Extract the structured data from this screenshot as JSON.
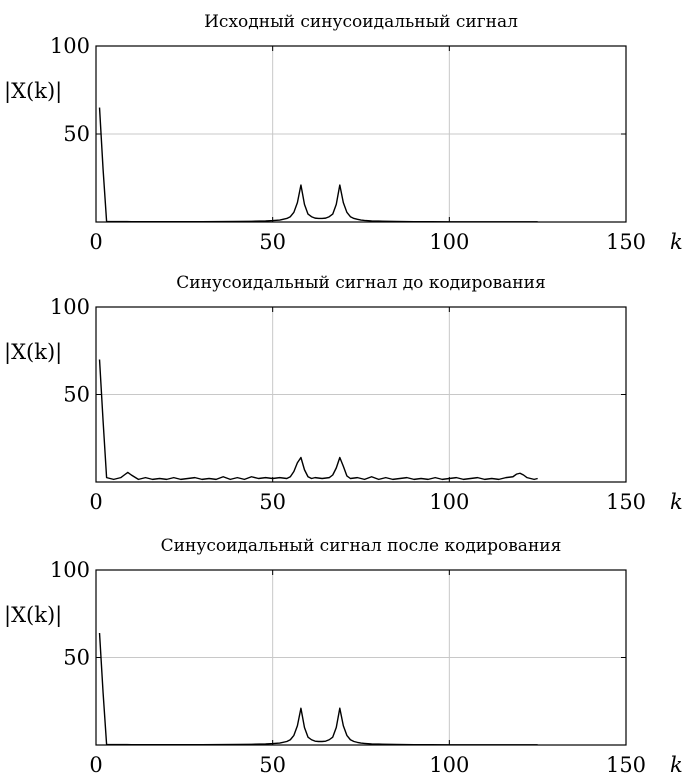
{
  "chart_data": [
    {
      "type": "line",
      "title": "Исходный синусоидальный сигнал",
      "xlabel": "k",
      "ylabel": "|X(k)|",
      "xlim": [
        0,
        150
      ],
      "ylim": [
        0,
        100
      ],
      "xticks": [
        0,
        50,
        100,
        150
      ],
      "yticks": [
        0,
        50,
        100
      ],
      "ytick_labels_shown": [
        "50",
        "100"
      ],
      "grid": true,
      "series": [
        {
          "x": [
            1,
            2,
            3,
            10,
            20,
            30,
            40,
            44,
            48,
            50,
            52,
            54,
            55,
            56,
            57,
            58,
            59,
            60,
            61,
            62,
            63,
            64,
            65,
            66,
            67,
            68,
            69,
            70,
            71,
            72,
            73,
            74,
            75,
            76,
            78,
            80,
            85,
            90,
            95,
            100,
            110,
            125
          ],
          "y": [
            65,
            30,
            0.3,
            0.2,
            0.2,
            0.2,
            0.3,
            0.4,
            0.6,
            0.8,
            1.1,
            2.0,
            3.0,
            5.5,
            11,
            21,
            10,
            4.5,
            3.0,
            2.2,
            2.0,
            2.0,
            2.2,
            3.0,
            4.5,
            10,
            21,
            11,
            5.5,
            3.0,
            2.0,
            1.5,
            1.1,
            0.9,
            0.6,
            0.5,
            0.3,
            0.2,
            0.2,
            0.1,
            0.1,
            0.1
          ]
        }
      ]
    },
    {
      "type": "line",
      "title": "Синусоидальный сигнал до кодирования",
      "xlabel": "k",
      "ylabel": "|X(k)|",
      "xlim": [
        0,
        150
      ],
      "ylim": [
        0,
        100
      ],
      "xticks": [
        0,
        50,
        100,
        150
      ],
      "yticks": [
        0,
        50,
        100
      ],
      "ytick_labels_shown": [
        "50",
        "100"
      ],
      "grid": true,
      "series": [
        {
          "x": [
            1,
            2,
            3,
            5,
            7,
            8,
            9,
            10,
            12,
            14,
            16,
            18,
            20,
            22,
            24,
            26,
            28,
            30,
            32,
            34,
            36,
            38,
            40,
            42,
            44,
            46,
            48,
            50,
            52,
            54,
            55,
            56,
            57,
            58,
            59,
            60,
            61,
            62,
            64,
            66,
            67,
            68,
            69,
            70,
            71,
            72,
            74,
            76,
            78,
            80,
            82,
            84,
            86,
            88,
            90,
            92,
            94,
            96,
            98,
            100,
            102,
            104,
            106,
            108,
            110,
            112,
            114,
            116,
            118,
            119,
            120,
            121,
            122,
            124,
            125
          ],
          "y": [
            70,
            35,
            2.5,
            1.5,
            2.5,
            4,
            5.5,
            4,
            1.5,
            2.5,
            1.5,
            2,
            1.5,
            2.5,
            1.5,
            2,
            2.5,
            1.5,
            2,
            1.5,
            3,
            1.5,
            2.5,
            1.5,
            3,
            2,
            2.5,
            2,
            2.5,
            2,
            3,
            6,
            11,
            14,
            7,
            3,
            2,
            2.5,
            2,
            2.5,
            4,
            8,
            14,
            9,
            3.5,
            2,
            2.5,
            1.5,
            3,
            1.5,
            2.5,
            1.5,
            2,
            2.5,
            1.5,
            2,
            1.5,
            2.5,
            1.5,
            2,
            2.5,
            1.5,
            2,
            2.5,
            1.5,
            2,
            1.5,
            2.5,
            3,
            4.5,
            5,
            4,
            2.5,
            1.5,
            2
          ]
        }
      ]
    },
    {
      "type": "line",
      "title": "Синусоидальный сигнал после кодирования",
      "xlabel": "k",
      "ylabel": "|X(k)|",
      "xlim": [
        0,
        150
      ],
      "ylim": [
        0,
        100
      ],
      "xticks": [
        0,
        50,
        100,
        150
      ],
      "yticks": [
        0,
        50,
        100
      ],
      "ytick_labels_shown": [
        "50",
        "100"
      ],
      "grid": true,
      "series": [
        {
          "x": [
            1,
            2,
            3,
            10,
            20,
            30,
            40,
            44,
            48,
            50,
            52,
            54,
            55,
            56,
            57,
            58,
            59,
            60,
            61,
            62,
            63,
            64,
            65,
            66,
            67,
            68,
            69,
            70,
            71,
            72,
            73,
            74,
            75,
            76,
            78,
            80,
            85,
            90,
            95,
            100,
            110,
            125
          ],
          "y": [
            64,
            30,
            0.3,
            0.2,
            0.2,
            0.2,
            0.3,
            0.4,
            0.6,
            0.8,
            1.1,
            2.0,
            3.0,
            5.5,
            11,
            21,
            10,
            4.5,
            3.0,
            2.2,
            2.0,
            2.0,
            2.2,
            3.0,
            4.5,
            10,
            21,
            11,
            5.5,
            3.0,
            2.0,
            1.5,
            1.1,
            0.9,
            0.6,
            0.5,
            0.3,
            0.2,
            0.2,
            0.1,
            0.1,
            0.1
          ]
        }
      ]
    }
  ]
}
